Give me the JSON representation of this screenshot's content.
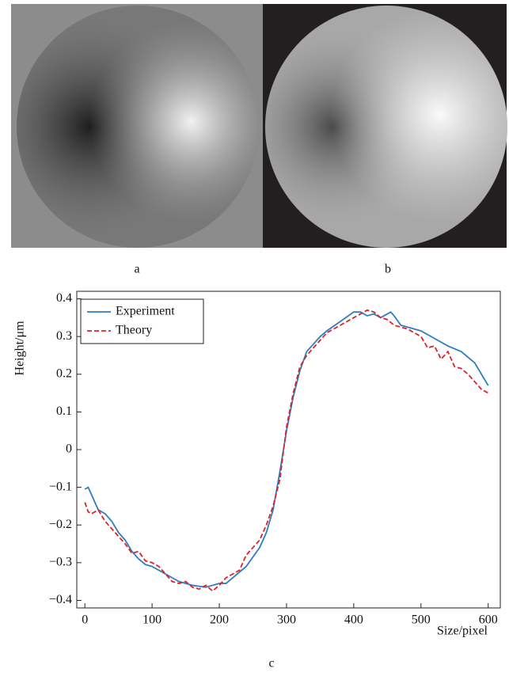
{
  "panels": {
    "a": "a",
    "b": "b"
  },
  "chart_data": {
    "type": "line",
    "panel_label": "c",
    "x_label": "Size/pixel",
    "y_label": "Height/μm",
    "xlim": [
      -12,
      618
    ],
    "ylim": [
      -0.42,
      0.42
    ],
    "xticks": [
      0,
      100,
      200,
      300,
      400,
      500,
      600
    ],
    "yticks": [
      {
        "value": -0.4,
        "label": "−0.4"
      },
      {
        "value": -0.3,
        "label": "−0.3"
      },
      {
        "value": -0.2,
        "label": "−0.2"
      },
      {
        "value": -0.1,
        "label": "−0.1"
      },
      0,
      0.1,
      0.2,
      0.3,
      0.4
    ],
    "legend": "upper left",
    "series": [
      {
        "name": "Experiment",
        "color": "#2e7dbf",
        "dash": false,
        "x": [
          0,
          5,
          10,
          20,
          30,
          40,
          50,
          60,
          70,
          80,
          90,
          100,
          120,
          140,
          160,
          180,
          190,
          200,
          210,
          220,
          240,
          260,
          270,
          280,
          290,
          300,
          310,
          320,
          330,
          340,
          350,
          360,
          380,
          400,
          410,
          420,
          430,
          440,
          450,
          455,
          460,
          470,
          480,
          500,
          520,
          540,
          560,
          580,
          600
        ],
        "values": [
          -0.105,
          -0.1,
          -0.12,
          -0.16,
          -0.17,
          -0.19,
          -0.22,
          -0.24,
          -0.27,
          -0.29,
          -0.305,
          -0.31,
          -0.33,
          -0.35,
          -0.36,
          -0.365,
          -0.36,
          -0.355,
          -0.355,
          -0.34,
          -0.31,
          -0.26,
          -0.22,
          -0.16,
          -0.06,
          0.05,
          0.14,
          0.21,
          0.26,
          0.28,
          0.3,
          0.315,
          0.34,
          0.365,
          0.365,
          0.355,
          0.36,
          0.35,
          0.36,
          0.365,
          0.355,
          0.33,
          0.325,
          0.315,
          0.295,
          0.275,
          0.26,
          0.23,
          0.17
        ]
      },
      {
        "name": "Theory",
        "color": "#e0202a",
        "dash": true,
        "x": [
          0,
          5,
          10,
          20,
          30,
          40,
          50,
          60,
          70,
          80,
          90,
          100,
          110,
          120,
          130,
          140,
          150,
          160,
          170,
          180,
          190,
          200,
          210,
          220,
          230,
          240,
          250,
          260,
          270,
          280,
          290,
          300,
          310,
          320,
          330,
          340,
          350,
          360,
          370,
          380,
          390,
          400,
          410,
          420,
          430,
          440,
          450,
          460,
          470,
          480,
          490,
          500,
          510,
          520,
          530,
          540,
          550,
          560,
          570,
          580,
          590,
          600
        ],
        "values": [
          -0.14,
          -0.165,
          -0.17,
          -0.16,
          -0.19,
          -0.21,
          -0.23,
          -0.25,
          -0.275,
          -0.27,
          -0.295,
          -0.3,
          -0.31,
          -0.33,
          -0.35,
          -0.355,
          -0.35,
          -0.365,
          -0.37,
          -0.36,
          -0.375,
          -0.36,
          -0.34,
          -0.33,
          -0.32,
          -0.28,
          -0.26,
          -0.24,
          -0.2,
          -0.15,
          -0.08,
          0.06,
          0.15,
          0.22,
          0.25,
          0.27,
          0.29,
          0.31,
          0.32,
          0.33,
          0.34,
          0.35,
          0.36,
          0.37,
          0.365,
          0.35,
          0.345,
          0.33,
          0.325,
          0.32,
          0.31,
          0.3,
          0.27,
          0.275,
          0.24,
          0.26,
          0.22,
          0.215,
          0.2,
          0.18,
          0.16,
          0.15
        ]
      }
    ]
  }
}
